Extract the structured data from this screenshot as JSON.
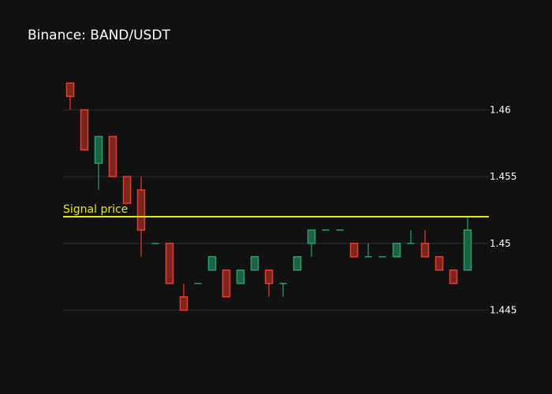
{
  "chart_data": {
    "type": "candlestick",
    "title": "Binance: BAND/USDT",
    "y_axis": {
      "side": "right",
      "ylim": [
        1.4425,
        1.4635
      ],
      "ticks": [
        1.445,
        1.45,
        1.455,
        1.46
      ],
      "tick_labels": [
        "1.445",
        "1.45",
        "1.455",
        "1.46"
      ]
    },
    "grid": true,
    "colors": {
      "background": "#111111",
      "up": "#26a269",
      "up_fill": "#1f5f45",
      "down": "#ef3b2c",
      "down_fill": "#7a2620",
      "signal": "#e6e619"
    },
    "signal_line": {
      "value": 1.452,
      "label": "Signal price"
    },
    "candles": [
      {
        "open": 1.462,
        "high": 1.462,
        "low": 1.46,
        "close": 1.461
      },
      {
        "open": 1.46,
        "high": 1.46,
        "low": 1.457,
        "close": 1.457
      },
      {
        "open": 1.456,
        "high": 1.458,
        "low": 1.454,
        "close": 1.458
      },
      {
        "open": 1.458,
        "high": 1.458,
        "low": 1.455,
        "close": 1.455
      },
      {
        "open": 1.455,
        "high": 1.455,
        "low": 1.453,
        "close": 1.453
      },
      {
        "open": 1.454,
        "high": 1.455,
        "low": 1.449,
        "close": 1.451
      },
      {
        "open": 1.45,
        "high": 1.45,
        "low": 1.45,
        "close": 1.45
      },
      {
        "open": 1.45,
        "high": 1.45,
        "low": 1.447,
        "close": 1.447
      },
      {
        "open": 1.446,
        "high": 1.447,
        "low": 1.445,
        "close": 1.445
      },
      {
        "open": 1.447,
        "high": 1.447,
        "low": 1.447,
        "close": 1.447
      },
      {
        "open": 1.448,
        "high": 1.449,
        "low": 1.448,
        "close": 1.449
      },
      {
        "open": 1.448,
        "high": 1.448,
        "low": 1.446,
        "close": 1.446
      },
      {
        "open": 1.447,
        "high": 1.448,
        "low": 1.447,
        "close": 1.448
      },
      {
        "open": 1.448,
        "high": 1.449,
        "low": 1.448,
        "close": 1.449
      },
      {
        "open": 1.448,
        "high": 1.448,
        "low": 1.446,
        "close": 1.447
      },
      {
        "open": 1.447,
        "high": 1.447,
        "low": 1.446,
        "close": 1.447
      },
      {
        "open": 1.448,
        "high": 1.449,
        "low": 1.448,
        "close": 1.449
      },
      {
        "open": 1.45,
        "high": 1.451,
        "low": 1.449,
        "close": 1.451
      },
      {
        "open": 1.451,
        "high": 1.451,
        "low": 1.451,
        "close": 1.451
      },
      {
        "open": 1.451,
        "high": 1.451,
        "low": 1.451,
        "close": 1.451
      },
      {
        "open": 1.45,
        "high": 1.45,
        "low": 1.449,
        "close": 1.449
      },
      {
        "open": 1.449,
        "high": 1.45,
        "low": 1.449,
        "close": 1.449
      },
      {
        "open": 1.449,
        "high": 1.449,
        "low": 1.449,
        "close": 1.449
      },
      {
        "open": 1.449,
        "high": 1.45,
        "low": 1.449,
        "close": 1.45
      },
      {
        "open": 1.45,
        "high": 1.451,
        "low": 1.45,
        "close": 1.45
      },
      {
        "open": 1.45,
        "high": 1.451,
        "low": 1.449,
        "close": 1.449
      },
      {
        "open": 1.449,
        "high": 1.449,
        "low": 1.448,
        "close": 1.448
      },
      {
        "open": 1.448,
        "high": 1.448,
        "low": 1.447,
        "close": 1.447
      },
      {
        "open": 1.448,
        "high": 1.452,
        "low": 1.448,
        "close": 1.451
      }
    ]
  }
}
